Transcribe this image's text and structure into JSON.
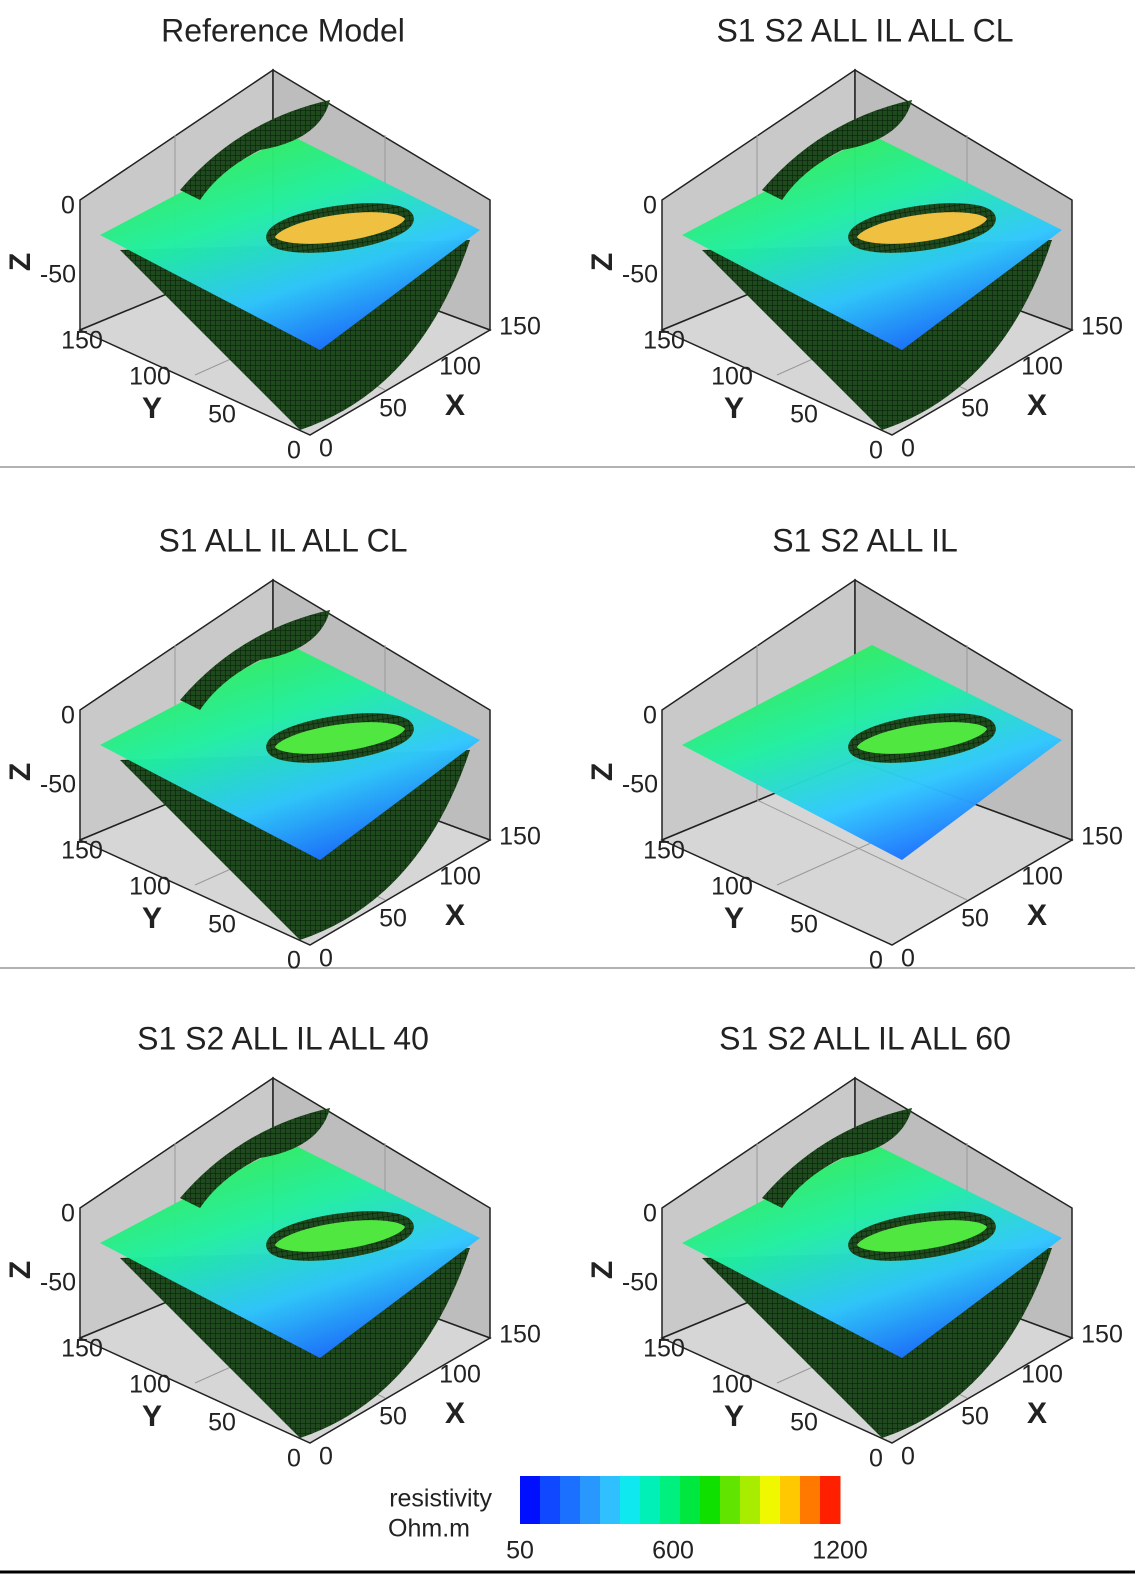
{
  "axes": {
    "z_label": "Z",
    "y_label": "Y",
    "x_label": "X",
    "zticks": [
      0,
      -50
    ],
    "yticks": [
      150,
      100,
      50,
      0
    ],
    "xticks": [
      0,
      50,
      100,
      150
    ]
  },
  "panels": [
    {
      "title": "Reference Model"
    },
    {
      "title": "S1 S2 ALL IL ALL CL"
    },
    {
      "title": "S1 ALL IL ALL CL"
    },
    {
      "title": "S1 S2 ALL IL"
    },
    {
      "title": "S1 S2 ALL IL ALL 40"
    },
    {
      "title": "S1 S2 ALL IL ALL 60"
    }
  ],
  "colorbar": {
    "label": [
      "resistivity",
      "Ohm.m"
    ],
    "clim": [
      50,
      1200
    ],
    "ticks": [
      50,
      600,
      1200
    ],
    "colors": [
      "#0010ff",
      "#1048ff",
      "#1c70ff",
      "#2898ff",
      "#30c0ff",
      "#10e8f0",
      "#00f0b8",
      "#00f080",
      "#00e840",
      "#10e000",
      "#60e400",
      "#a8ec00",
      "#f0f800",
      "#ffc800",
      "#ff7800",
      "#ff2000"
    ]
  }
}
